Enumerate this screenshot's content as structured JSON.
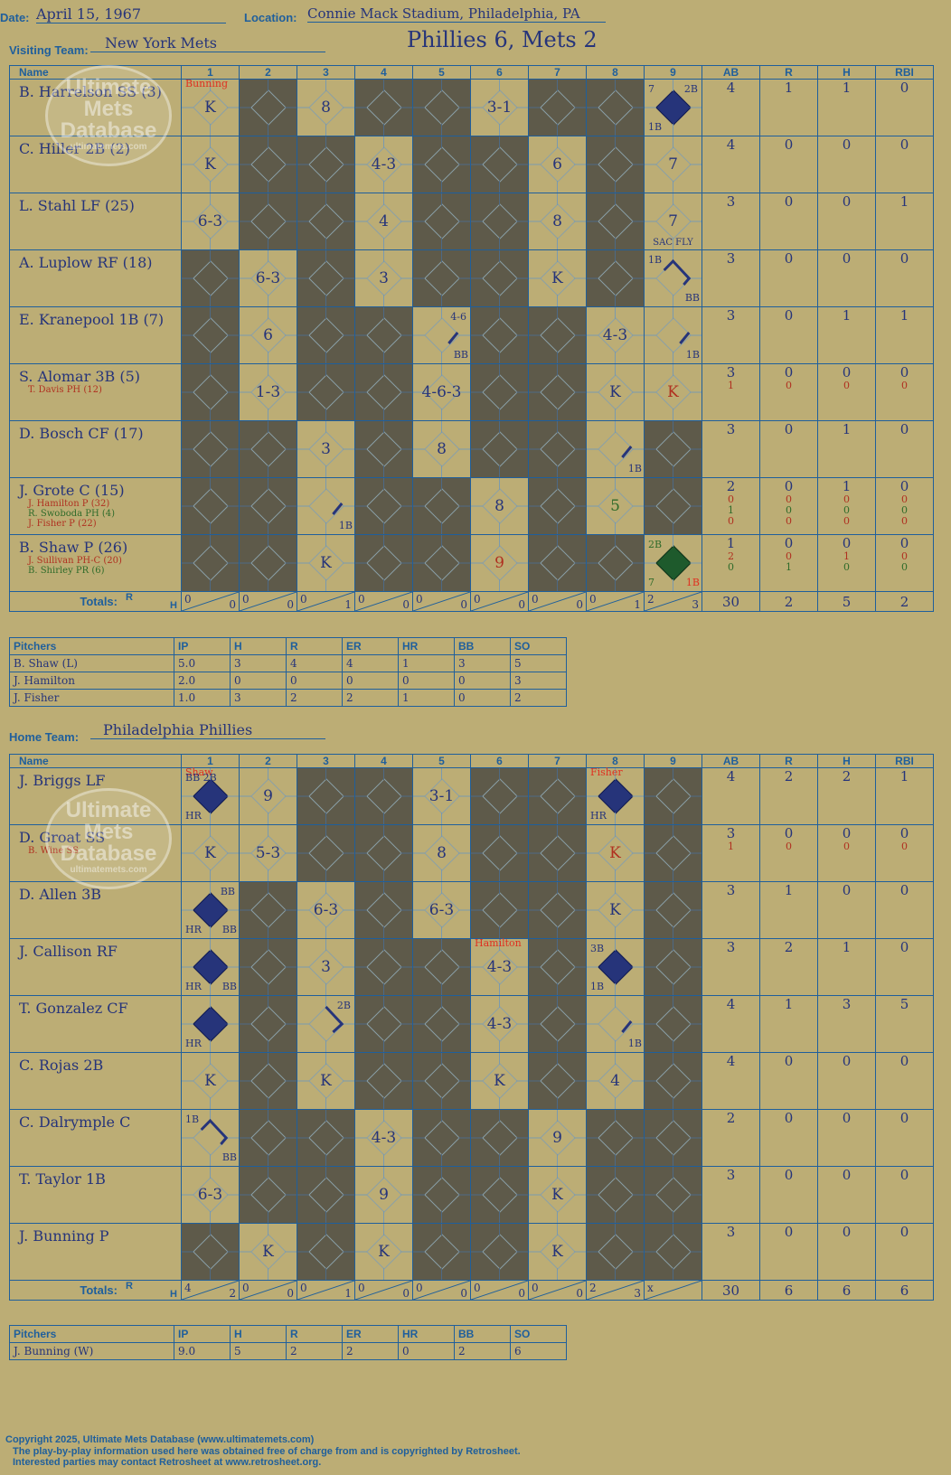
{
  "header": {
    "date_label": "Date:",
    "date": "April 15, 1967",
    "location_label": "Location:",
    "location": "Connie Mack Stadium, Philadelphia, PA",
    "visiting_label": "Visiting Team:",
    "visiting_team": "New York Mets",
    "score_title": "Phillies 6, Mets 2",
    "home_label": "Home Team:",
    "home_team": "Philadelphia Phillies"
  },
  "grid_headers": {
    "name": "Name",
    "innings": [
      "1",
      "2",
      "3",
      "4",
      "5",
      "6",
      "7",
      "8",
      "9"
    ],
    "stats": [
      "AB",
      "R",
      "H",
      "RBI"
    ],
    "totals": "Totals:",
    "r": "R",
    "h": "H"
  },
  "visitors": {
    "players": [
      {
        "name": "B. Harrelson SS (3)",
        "subs": [],
        "ab": [
          "4"
        ],
        "r": [
          "1"
        ],
        "h": [
          "1"
        ],
        "rbi": [
          "0"
        ]
      },
      {
        "name": "C. Hiller 2B (2)",
        "subs": [],
        "ab": [
          "4"
        ],
        "r": [
          "0"
        ],
        "h": [
          "0"
        ],
        "rbi": [
          "0"
        ]
      },
      {
        "name": "L. Stahl LF (25)",
        "subs": [],
        "ab": [
          "3"
        ],
        "r": [
          "0"
        ],
        "h": [
          "0"
        ],
        "rbi": [
          "1"
        ]
      },
      {
        "name": "A. Luplow RF (18)",
        "subs": [],
        "ab": [
          "3"
        ],
        "r": [
          "0"
        ],
        "h": [
          "0"
        ],
        "rbi": [
          "0"
        ]
      },
      {
        "name": "E. Kranepool 1B (7)",
        "subs": [],
        "ab": [
          "3"
        ],
        "r": [
          "0"
        ],
        "h": [
          "1"
        ],
        "rbi": [
          "1"
        ]
      },
      {
        "name": "S. Alomar 3B (5)",
        "subs": [
          {
            "t": "T. Davis PH (12)",
            "c": "red"
          }
        ],
        "ab": [
          "3",
          "1"
        ],
        "r": [
          "0",
          "0"
        ],
        "h": [
          "0",
          "0"
        ],
        "rbi": [
          "0",
          "0"
        ]
      },
      {
        "name": "D. Bosch CF (17)",
        "subs": [],
        "ab": [
          "3"
        ],
        "r": [
          "0"
        ],
        "h": [
          "1"
        ],
        "rbi": [
          "0"
        ]
      },
      {
        "name": "J. Grote C (15)",
        "subs": [
          {
            "t": "J. Hamilton P (32)",
            "c": "red"
          },
          {
            "t": "R. Swoboda PH (4)",
            "c": "grn"
          },
          {
            "t": "J. Fisher P (22)",
            "c": "red"
          }
        ],
        "ab": [
          "2",
          "0",
          "1",
          "0"
        ],
        "r": [
          "0",
          "0",
          "0",
          "0"
        ],
        "h": [
          "1",
          "0",
          "0",
          "0"
        ],
        "rbi": [
          "0",
          "0",
          "0",
          "0"
        ]
      },
      {
        "name": "B. Shaw P (26)",
        "subs": [
          {
            "t": "J. Sullivan PH-C (20)",
            "c": "red"
          },
          {
            "t": "B. Shirley PR (6)",
            "c": "grn"
          }
        ],
        "ab": [
          "1",
          "2",
          "0"
        ],
        "r": [
          "0",
          "0",
          "1"
        ],
        "h": [
          "0",
          "1",
          "0"
        ],
        "rbi": [
          "0",
          "0",
          "0"
        ]
      }
    ],
    "totals_rh": [
      [
        "0",
        "0"
      ],
      [
        "0",
        "0"
      ],
      [
        "0",
        "1"
      ],
      [
        "0",
        "0"
      ],
      [
        "0",
        "0"
      ],
      [
        "0",
        "0"
      ],
      [
        "0",
        "0"
      ],
      [
        "0",
        "1"
      ],
      [
        "2",
        "3"
      ]
    ],
    "totals_stats": [
      "30",
      "2",
      "5",
      "2"
    ]
  },
  "home": {
    "players": [
      {
        "name": "J. Briggs LF",
        "subs": [],
        "ab": [
          "4"
        ],
        "r": [
          "2"
        ],
        "h": [
          "2"
        ],
        "rbi": [
          "1"
        ]
      },
      {
        "name": "D. Groat SS",
        "subs": [
          {
            "t": "B. Wine SS",
            "c": "red"
          }
        ],
        "ab": [
          "3",
          "1"
        ],
        "r": [
          "0",
          "0"
        ],
        "h": [
          "0",
          "0"
        ],
        "rbi": [
          "0",
          "0"
        ]
      },
      {
        "name": "D. Allen 3B",
        "subs": [],
        "ab": [
          "3"
        ],
        "r": [
          "1"
        ],
        "h": [
          "0"
        ],
        "rbi": [
          "0"
        ]
      },
      {
        "name": "J. Callison RF",
        "subs": [],
        "ab": [
          "3"
        ],
        "r": [
          "2"
        ],
        "h": [
          "1"
        ],
        "rbi": [
          "0"
        ]
      },
      {
        "name": "T. Gonzalez CF",
        "subs": [],
        "ab": [
          "4"
        ],
        "r": [
          "1"
        ],
        "h": [
          "3"
        ],
        "rbi": [
          "5"
        ]
      },
      {
        "name": "C. Rojas 2B",
        "subs": [],
        "ab": [
          "4"
        ],
        "r": [
          "0"
        ],
        "h": [
          "0"
        ],
        "rbi": [
          "0"
        ]
      },
      {
        "name": "C. Dalrymple C",
        "subs": [],
        "ab": [
          "2"
        ],
        "r": [
          "0"
        ],
        "h": [
          "0"
        ],
        "rbi": [
          "0"
        ]
      },
      {
        "name": "T. Taylor 1B",
        "subs": [],
        "ab": [
          "3"
        ],
        "r": [
          "0"
        ],
        "h": [
          "0"
        ],
        "rbi": [
          "0"
        ]
      },
      {
        "name": "J. Bunning P",
        "subs": [],
        "ab": [
          "3"
        ],
        "r": [
          "0"
        ],
        "h": [
          "0"
        ],
        "rbi": [
          "0"
        ]
      }
    ],
    "totals_rh": [
      [
        "4",
        "2"
      ],
      [
        "0",
        "0"
      ],
      [
        "0",
        "1"
      ],
      [
        "0",
        "0"
      ],
      [
        "0",
        "0"
      ],
      [
        "0",
        "0"
      ],
      [
        "0",
        "0"
      ],
      [
        "2",
        "3"
      ],
      [
        "x",
        ""
      ]
    ],
    "totals_stats": [
      "30",
      "6",
      "6",
      "6"
    ]
  },
  "visitors_pitching": {
    "headers": [
      "Pitchers",
      "IP",
      "H",
      "R",
      "ER",
      "HR",
      "BB",
      "SO"
    ],
    "rows": [
      [
        "B. Shaw (L)",
        "5.0",
        "3",
        "4",
        "4",
        "1",
        "3",
        "5"
      ],
      [
        "J. Hamilton",
        "2.0",
        "0",
        "0",
        "0",
        "0",
        "0",
        "3"
      ],
      [
        "J. Fisher",
        "1.0",
        "3",
        "2",
        "2",
        "1",
        "0",
        "2"
      ]
    ]
  },
  "home_pitching": {
    "headers": [
      "Pitchers",
      "IP",
      "H",
      "R",
      "ER",
      "HR",
      "BB",
      "SO"
    ],
    "rows": [
      [
        "J. Bunning (W)",
        "9.0",
        "5",
        "2",
        "2",
        "0",
        "2",
        "6"
      ]
    ]
  },
  "watermark": {
    "line1": "Ultimate",
    "line2": "Mets",
    "line3": "Database",
    "url": "ultimatemets.com"
  },
  "footer": {
    "line1": "Copyright 2025, Ultimate Mets Database (www.ultimatemets.com)",
    "line2": "The play-by-play information used here was obtained free of charge from and is copyrighted by Retrosheet.",
    "line3": "Interested parties may contact Retrosheet at www.retrosheet.org."
  },
  "visitors_cells": [
    [
      {
        "res": "K",
        "pitcher": "Bunning"
      },
      {
        "dark": 1
      },
      {
        "res": "8"
      },
      {
        "dark": 1
      },
      {
        "dark": 1
      },
      {
        "res": "3-1"
      },
      {
        "dark": 1
      },
      {
        "dark": 1
      },
      {
        "fill": "lf",
        "tl": "7",
        "tr": "2B",
        "bl": "1B"
      }
    ],
    [
      {
        "res": "K"
      },
      {
        "dark": 1
      },
      {
        "dark": 1
      },
      {
        "res": "4-3"
      },
      {
        "dark": 1
      },
      {
        "dark": 1
      },
      {
        "res": "6"
      },
      {
        "dark": 1
      },
      {
        "res": "7"
      }
    ],
    [
      {
        "res": "6-3"
      },
      {
        "dark": 1
      },
      {
        "dark": 1
      },
      {
        "res": "4"
      },
      {
        "dark": 1
      },
      {
        "dark": 1
      },
      {
        "res": "8"
      },
      {
        "dark": 1
      },
      {
        "res": "7",
        "bc": "SAC FLY"
      }
    ],
    [
      {
        "dark": 1
      },
      {
        "res": "6-3"
      },
      {
        "dark": 1
      },
      {
        "res": "3"
      },
      {
        "dark": 1
      },
      {
        "dark": 1
      },
      {
        "res": "K"
      },
      {
        "dark": 1
      },
      {
        "tl": "1B",
        "br": "BB",
        "path": "1b"
      }
    ],
    [
      {
        "dark": 1
      },
      {
        "res": "6"
      },
      {
        "dark": 1
      },
      {
        "dark": 1
      },
      {
        "tr": "4-6",
        "br": "BB",
        "path": "1"
      },
      {
        "dark": 1
      },
      {
        "dark": 1
      },
      {
        "res": "4-3"
      },
      {
        "br": "1B",
        "path": "1"
      }
    ],
    [
      {
        "dark": 1
      },
      {
        "res": "1-3"
      },
      {
        "dark": 1
      },
      {
        "dark": 1
      },
      {
        "res": "4-6-3"
      },
      {
        "dark": 1
      },
      {
        "dark": 1
      },
      {
        "res": "K"
      },
      {
        "res": "K",
        "col": "red"
      }
    ],
    [
      {
        "dark": 1
      },
      {
        "dark": 1
      },
      {
        "res": "3"
      },
      {
        "dark": 1
      },
      {
        "res": "8"
      },
      {
        "dark": 1
      },
      {
        "dark": 1
      },
      {
        "br": "1B",
        "path": "1"
      },
      {
        "dark": 1
      }
    ],
    [
      {
        "dark": 1
      },
      {
        "dark": 1
      },
      {
        "br": "1B",
        "path": "1"
      },
      {
        "dark": 1
      },
      {
        "dark": 1
      },
      {
        "res": "8"
      },
      {
        "dark": 1
      },
      {
        "res": "5",
        "col": "grn"
      },
      {
        "dark": 1
      }
    ],
    [
      {
        "dark": 1
      },
      {
        "dark": 1
      },
      {
        "res": "K"
      },
      {
        "dark": 1
      },
      {
        "dark": 1
      },
      {
        "res": "9",
        "col": "red"
      },
      {
        "dark": 1
      },
      {
        "dark": 1
      },
      {
        "fill": "gn",
        "tl": "2B",
        "bl": "7",
        "br": "1B",
        "tlc": "grn",
        "blc": "grn",
        "brc": "red"
      }
    ]
  ],
  "home_cells": [
    [
      {
        "fill": "lf",
        "tl": "BB 2B",
        "bl": "HR",
        "pitcher": "Shaw"
      },
      {
        "res": "9"
      },
      {
        "dark": 1
      },
      {
        "dark": 1
      },
      {
        "res": "3-1"
      },
      {
        "dark": 1
      },
      {
        "dark": 1
      },
      {
        "fill": "lf",
        "bl": "HR",
        "pitcher": "Fisher"
      },
      {
        "dark": 1
      }
    ],
    [
      {
        "res": "K"
      },
      {
        "res": "5-3"
      },
      {
        "dark": 1
      },
      {
        "dark": 1
      },
      {
        "res": "8"
      },
      {
        "dark": 1
      },
      {
        "dark": 1
      },
      {
        "res": "K",
        "col": "red"
      },
      {
        "dark": 1
      }
    ],
    [
      {
        "fill": "lf",
        "tr": "BB",
        "bl": "HR",
        "br": "BB"
      },
      {
        "dark": 1
      },
      {
        "res": "6-3"
      },
      {
        "dark": 1
      },
      {
        "res": "6-3"
      },
      {
        "dark": 1
      },
      {
        "dark": 1
      },
      {
        "res": "K"
      },
      {
        "dark": 1
      }
    ],
    [
      {
        "fill": "lf",
        "bl": "HR",
        "br": "BB"
      },
      {
        "dark": 1
      },
      {
        "res": "3"
      },
      {
        "dark": 1
      },
      {
        "dark": 1
      },
      {
        "res": "4-3",
        "pitcher": "Hamilton"
      },
      {
        "dark": 1
      },
      {
        "fill": "lf",
        "tl": "3B",
        "bl": "1B"
      },
      {
        "dark": 1
      }
    ],
    [
      {
        "fill": "lf",
        "bl": "HR"
      },
      {
        "dark": 1
      },
      {
        "tr": "2B",
        "path": "2b"
      },
      {
        "dark": 1
      },
      {
        "dark": 1
      },
      {
        "res": "4-3"
      },
      {
        "dark": 1
      },
      {
        "br": "1B",
        "path": "1"
      },
      {
        "dark": 1
      }
    ],
    [
      {
        "res": "K"
      },
      {
        "dark": 1
      },
      {
        "res": "K"
      },
      {
        "dark": 1
      },
      {
        "dark": 1
      },
      {
        "res": "K"
      },
      {
        "dark": 1
      },
      {
        "res": "4"
      },
      {
        "dark": 1
      }
    ],
    [
      {
        "tl": "1B",
        "br": "BB",
        "path": "1b"
      },
      {
        "dark": 1
      },
      {
        "dark": 1
      },
      {
        "res": "4-3"
      },
      {
        "dark": 1
      },
      {
        "dark": 1
      },
      {
        "res": "9"
      },
      {
        "dark": 1
      },
      {
        "dark": 1
      }
    ],
    [
      {
        "res": "6-3"
      },
      {
        "dark": 1
      },
      {
        "dark": 1
      },
      {
        "res": "9"
      },
      {
        "dark": 1
      },
      {
        "dark": 1
      },
      {
        "res": "K"
      },
      {
        "dark": 1
      },
      {
        "dark": 1
      }
    ],
    [
      {
        "dark": 1
      },
      {
        "res": "K"
      },
      {
        "dark": 1
      },
      {
        "res": "K"
      },
      {
        "dark": 1
      },
      {
        "dark": 1
      },
      {
        "res": "K"
      },
      {
        "dark": 1
      },
      {
        "dark": 1
      }
    ]
  ]
}
